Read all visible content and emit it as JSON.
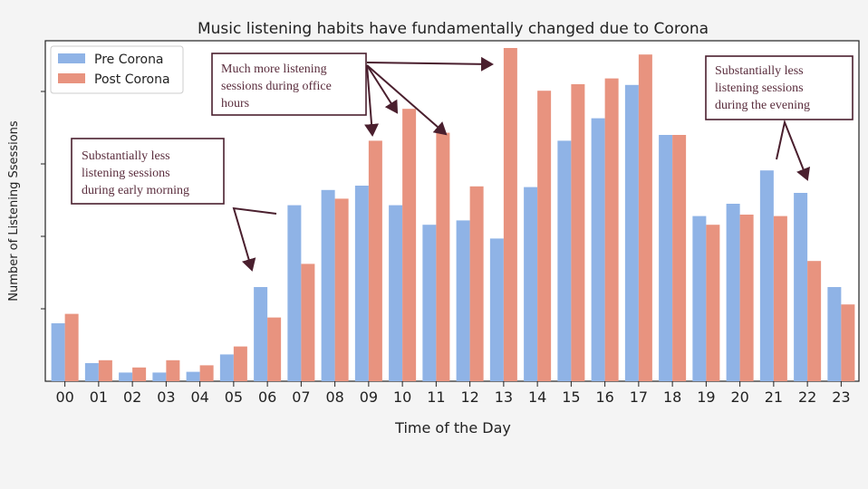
{
  "chart_data": {
    "type": "bar",
    "title": "Music listening habits have fundamentally changed due to Corona",
    "xlabel": "Time of the Day",
    "ylabel": "Number of Listening Ssessions",
    "categories": [
      "00",
      "01",
      "02",
      "03",
      "04",
      "05",
      "06",
      "07",
      "08",
      "09",
      "10",
      "11",
      "12",
      "13",
      "14",
      "15",
      "16",
      "17",
      "18",
      "19",
      "20",
      "21",
      "22",
      "23"
    ],
    "ylim": [
      0,
      460
    ],
    "grid": false,
    "legend_position": "top-left",
    "series": [
      {
        "name": "Pre Corona",
        "color": "#8fb3e6",
        "values": [
          80,
          25,
          12,
          12,
          13,
          37,
          130,
          243,
          264,
          270,
          243,
          216,
          222,
          197,
          268,
          332,
          363,
          409,
          340,
          228,
          245,
          291,
          260,
          130
        ]
      },
      {
        "name": "Post Corona",
        "color": "#e8937f",
        "values": [
          93,
          29,
          19,
          29,
          22,
          48,
          88,
          162,
          252,
          332,
          376,
          343,
          269,
          460,
          401,
          410,
          418,
          451,
          340,
          216,
          230,
          228,
          166,
          106
        ]
      }
    ],
    "annotations": [
      {
        "lines": [
          "Substantially less",
          "listening sessions",
          "during early morning"
        ]
      },
      {
        "lines": [
          "Much more listening",
          "sessions during office",
          "hours"
        ]
      },
      {
        "lines": [
          "Substantially less",
          "listening sessions",
          "during the evening"
        ]
      }
    ]
  }
}
